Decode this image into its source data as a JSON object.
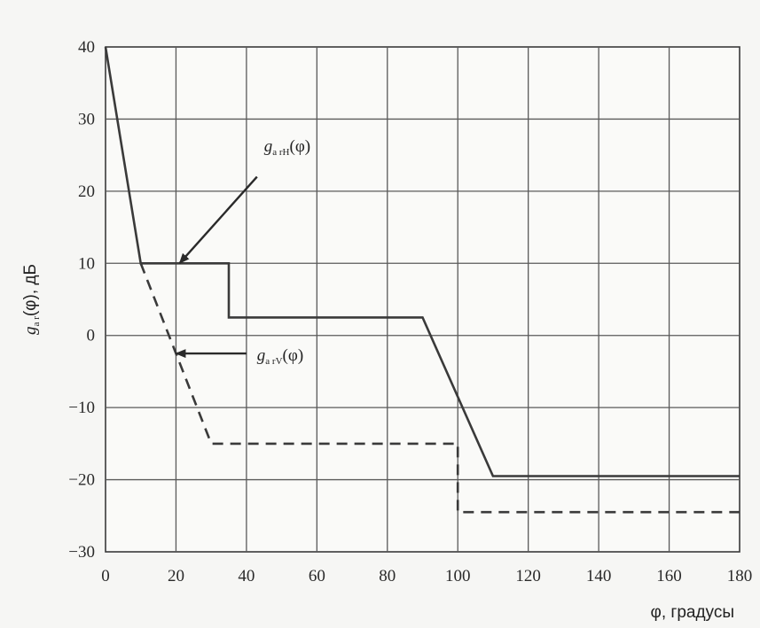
{
  "chart_data": {
    "type": "line",
    "xlabel": "φ, градусы",
    "ylabel_main": "g",
    "ylabel_sub": "a r",
    "ylabel_rest": "(φ), дБ",
    "xlim": [
      0,
      180
    ],
    "ylim": [
      -30,
      40
    ],
    "x_ticks": [
      "0",
      "20",
      "40",
      "60",
      "80",
      "100",
      "120",
      "140",
      "160",
      "180"
    ],
    "y_ticks": [
      "40",
      "30",
      "20",
      "10",
      "0",
      "-10",
      "-20",
      "-30"
    ],
    "grid": true,
    "series": [
      {
        "name": "g_arH(φ)",
        "style": "solid",
        "color": "#3a3a3a",
        "points": [
          [
            0,
            40
          ],
          [
            10,
            10
          ],
          [
            35,
            10
          ],
          [
            35,
            2.5
          ],
          [
            90,
            2.5
          ],
          [
            110,
            -19.5
          ],
          [
            180,
            -19.5
          ]
        ]
      },
      {
        "name": "g_arV(φ)",
        "style": "dashed",
        "color": "#3a3a3a",
        "points": [
          [
            10,
            10
          ],
          [
            30,
            -15
          ],
          [
            100,
            -15
          ],
          [
            100,
            -24.5
          ],
          [
            180,
            -24.5
          ]
        ]
      }
    ],
    "annotations": [
      {
        "main": "g",
        "sub": "a rH",
        "rest": "(φ)",
        "text_at": [
          45,
          25.5
        ],
        "arrow_from": [
          43,
          22
        ],
        "arrow_to": [
          21,
          10
        ]
      },
      {
        "main": "g",
        "sub": "a rV",
        "rest": "(φ)",
        "text_at": [
          43,
          -3.5
        ],
        "arrow_from": [
          40,
          -2.5
        ],
        "arrow_to": [
          20,
          -2.5
        ]
      }
    ]
  }
}
